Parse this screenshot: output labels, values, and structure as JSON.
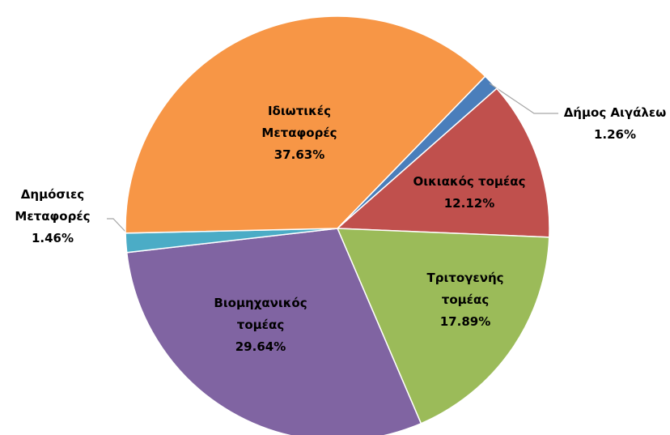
{
  "chart_data": {
    "type": "pie",
    "categories": [
      "Δήμος Αιγάλεω",
      "Οικιακός τομέας",
      "Τριτογενής τομέας",
      "Βιομηχανικός τομέας",
      "Δημόσιες Μεταφορές",
      "Ιδιωτικές Μεταφορές"
    ],
    "values": [
      1.26,
      12.12,
      17.89,
      29.64,
      1.46,
      37.63
    ],
    "value_labels": [
      "1.26%",
      "12.12%",
      "17.89%",
      "29.64%",
      "1.46%",
      "37.63%"
    ],
    "colors": [
      "#4a7ebb",
      "#c0504d",
      "#9bbb59",
      "#8064a2",
      "#4bacc6",
      "#f79646"
    ]
  }
}
